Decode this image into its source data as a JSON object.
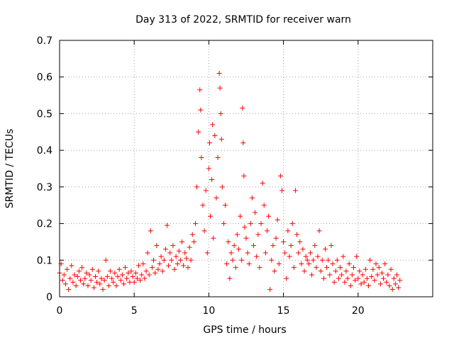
{
  "chart_data": {
    "type": "scatter",
    "title": "Day 313 of 2022, SRMTID for receiver warn",
    "xlabel": "GPS time / hours",
    "ylabel": "SRMTID / TECUs",
    "xlim": [
      0,
      25
    ],
    "ylim": [
      0,
      0.7
    ],
    "xticks": [
      0,
      5,
      10,
      15,
      20
    ],
    "xtick_labels": [
      "0",
      "5",
      "10",
      "15",
      "20"
    ],
    "yticks": [
      0,
      0.1,
      0.2,
      0.3,
      0.4,
      0.5,
      0.6,
      0.7
    ],
    "ytick_labels": [
      "0",
      "0.1",
      "0.2",
      "0.3",
      "0.4",
      "0.5",
      "0.6",
      "0.7"
    ],
    "grid": true,
    "marker": "+",
    "series": [
      {
        "name": "SRMTID",
        "color": "#ff0000",
        "points": [
          [
            0.0,
            0.065
          ],
          [
            0.1,
            0.09
          ],
          [
            0.2,
            0.045
          ],
          [
            0.3,
            0.06
          ],
          [
            0.4,
            0.035
          ],
          [
            0.5,
            0.075
          ],
          [
            0.6,
            0.02
          ],
          [
            0.7,
            0.05
          ],
          [
            0.8,
            0.085
          ],
          [
            0.9,
            0.04
          ],
          [
            1.0,
            0.06
          ],
          [
            1.1,
            0.03
          ],
          [
            1.2,
            0.055
          ],
          [
            1.3,
            0.07
          ],
          [
            1.4,
            0.045
          ],
          [
            1.5,
            0.08
          ],
          [
            1.6,
            0.035
          ],
          [
            1.7,
            0.05
          ],
          [
            1.8,
            0.065
          ],
          [
            1.9,
            0.03
          ],
          [
            2.0,
            0.06
          ],
          [
            2.1,
            0.045
          ],
          [
            2.2,
            0.075
          ],
          [
            2.3,
            0.025
          ],
          [
            2.4,
            0.055
          ],
          [
            2.5,
            0.04
          ],
          [
            2.6,
            0.07
          ],
          [
            2.7,
            0.035
          ],
          [
            2.8,
            0.05
          ],
          [
            2.9,
            0.02
          ],
          [
            3.0,
            0.045
          ],
          [
            3.1,
            0.1
          ],
          [
            3.2,
            0.055
          ],
          [
            3.3,
            0.03
          ],
          [
            3.4,
            0.07
          ],
          [
            3.5,
            0.05
          ],
          [
            3.6,
            0.04
          ],
          [
            3.7,
            0.065
          ],
          [
            3.8,
            0.03
          ],
          [
            3.9,
            0.055
          ],
          [
            4.0,
            0.075
          ],
          [
            4.1,
            0.045
          ],
          [
            4.2,
            0.06
          ],
          [
            4.3,
            0.035
          ],
          [
            4.4,
            0.08
          ],
          [
            4.5,
            0.05
          ],
          [
            4.6,
            0.065
          ],
          [
            4.7,
            0.04
          ],
          [
            4.8,
            0.07
          ],
          [
            4.9,
            0.055
          ],
          [
            5.0,
            0.04
          ],
          [
            5.1,
            0.065
          ],
          [
            5.2,
            0.05
          ],
          [
            5.3,
            0.085
          ],
          [
            5.4,
            0.045
          ],
          [
            5.5,
            0.06
          ],
          [
            5.6,
            0.09
          ],
          [
            5.7,
            0.05
          ],
          [
            5.8,
            0.07
          ],
          [
            5.9,
            0.12
          ],
          [
            6.0,
            0.06
          ],
          [
            6.1,
            0.18
          ],
          [
            6.2,
            0.08
          ],
          [
            6.3,
            0.1
          ],
          [
            6.4,
            0.065
          ],
          [
            6.5,
            0.14
          ],
          [
            6.6,
            0.075
          ],
          [
            6.7,
            0.09
          ],
          [
            6.8,
            0.11
          ],
          [
            6.9,
            0.07
          ],
          [
            7.0,
            0.1
          ],
          [
            7.1,
            0.13
          ],
          [
            7.2,
            0.195
          ],
          [
            7.3,
            0.085
          ],
          [
            7.4,
            0.12
          ],
          [
            7.5,
            0.1
          ],
          [
            7.6,
            0.14
          ],
          [
            7.7,
            0.075
          ],
          [
            7.8,
            0.11
          ],
          [
            7.9,
            0.09
          ],
          [
            8.0,
            0.125
          ],
          [
            8.1,
            0.1
          ],
          [
            8.2,
            0.15
          ],
          [
            8.3,
            0.085
          ],
          [
            8.4,
            0.12
          ],
          [
            8.5,
            0.105
          ],
          [
            8.6,
            0.08
          ],
          [
            8.7,
            0.135
          ],
          [
            8.8,
            0.1
          ],
          [
            8.9,
            0.17
          ],
          [
            9.0,
            0.15
          ],
          [
            9.1,
            0.2
          ],
          [
            9.2,
            0.3
          ],
          [
            9.3,
            0.45
          ],
          [
            9.4,
            0.565
          ],
          [
            9.45,
            0.51
          ],
          [
            9.5,
            0.38
          ],
          [
            9.6,
            0.25
          ],
          [
            9.7,
            0.18
          ],
          [
            9.8,
            0.29
          ],
          [
            9.9,
            0.12
          ],
          [
            10.0,
            0.35
          ],
          [
            10.05,
            0.42
          ],
          [
            10.1,
            0.22
          ],
          [
            10.2,
            0.32
          ],
          [
            10.25,
            0.47
          ],
          [
            10.3,
            0.16
          ],
          [
            10.4,
            0.44
          ],
          [
            10.5,
            0.27
          ],
          [
            10.6,
            0.38
          ],
          [
            10.7,
            0.61
          ],
          [
            10.75,
            0.57
          ],
          [
            10.8,
            0.5
          ],
          [
            10.85,
            0.43
          ],
          [
            10.9,
            0.3
          ],
          [
            11.0,
            0.2
          ],
          [
            11.1,
            0.25
          ],
          [
            11.2,
            0.09
          ],
          [
            11.3,
            0.15
          ],
          [
            11.4,
            0.05
          ],
          [
            11.5,
            0.12
          ],
          [
            11.6,
            0.1
          ],
          [
            11.7,
            0.14
          ],
          [
            11.8,
            0.08
          ],
          [
            11.9,
            0.17
          ],
          [
            12.0,
            0.13
          ],
          [
            12.1,
            0.22
          ],
          [
            12.2,
            0.1
          ],
          [
            12.25,
            0.515
          ],
          [
            12.3,
            0.42
          ],
          [
            12.35,
            0.33
          ],
          [
            12.4,
            0.19
          ],
          [
            12.5,
            0.16
          ],
          [
            12.6,
            0.12
          ],
          [
            12.7,
            0.09
          ],
          [
            12.8,
            0.2
          ],
          [
            12.9,
            0.27
          ],
          [
            13.0,
            0.14
          ],
          [
            13.1,
            0.23
          ],
          [
            13.2,
            0.11
          ],
          [
            13.3,
            0.17
          ],
          [
            13.4,
            0.08
          ],
          [
            13.5,
            0.2
          ],
          [
            13.6,
            0.31
          ],
          [
            13.7,
            0.25
          ],
          [
            13.8,
            0.12
          ],
          [
            13.9,
            0.18
          ],
          [
            14.0,
            0.22
          ],
          [
            14.1,
            0.02
          ],
          [
            14.2,
            0.1
          ],
          [
            14.3,
            0.14
          ],
          [
            14.4,
            0.07
          ],
          [
            14.5,
            0.16
          ],
          [
            14.6,
            0.21
          ],
          [
            14.7,
            0.09
          ],
          [
            14.8,
            0.33
          ],
          [
            14.9,
            0.29
          ],
          [
            15.0,
            0.15
          ],
          [
            15.1,
            0.12
          ],
          [
            15.2,
            0.05
          ],
          [
            15.3,
            0.18
          ],
          [
            15.4,
            0.11
          ],
          [
            15.5,
            0.14
          ],
          [
            15.6,
            0.2
          ],
          [
            15.7,
            0.08
          ],
          [
            15.8,
            0.29
          ],
          [
            15.9,
            0.17
          ],
          [
            16.0,
            0.12
          ],
          [
            16.1,
            0.15
          ],
          [
            16.2,
            0.09
          ],
          [
            16.3,
            0.13
          ],
          [
            16.4,
            0.07
          ],
          [
            16.5,
            0.11
          ],
          [
            16.6,
            0.1
          ],
          [
            16.7,
            0.09
          ],
          [
            16.8,
            0.12
          ],
          [
            16.9,
            0.06
          ],
          [
            17.0,
            0.1
          ],
          [
            17.1,
            0.14
          ],
          [
            17.2,
            0.08
          ],
          [
            17.3,
            0.11
          ],
          [
            17.4,
            0.18
          ],
          [
            17.5,
            0.07
          ],
          [
            17.6,
            0.1
          ],
          [
            17.7,
            0.05
          ],
          [
            17.8,
            0.13
          ],
          [
            17.9,
            0.08
          ],
          [
            18.0,
            0.1
          ],
          [
            18.1,
            0.06
          ],
          [
            18.2,
            0.14
          ],
          [
            18.3,
            0.09
          ],
          [
            18.4,
            0.04
          ],
          [
            18.5,
            0.07
          ],
          [
            18.6,
            0.1
          ],
          [
            18.7,
            0.05
          ],
          [
            18.8,
            0.08
          ],
          [
            18.9,
            0.06
          ],
          [
            19.0,
            0.11
          ],
          [
            19.1,
            0.04
          ],
          [
            19.2,
            0.07
          ],
          [
            19.3,
            0.05
          ],
          [
            19.4,
            0.09
          ],
          [
            19.5,
            0.03
          ],
          [
            19.6,
            0.06
          ],
          [
            19.7,
            0.08
          ],
          [
            19.8,
            0.045
          ],
          [
            19.9,
            0.11
          ],
          [
            20.0,
            0.05
          ],
          [
            20.1,
            0.07
          ],
          [
            20.2,
            0.035
          ],
          [
            20.3,
            0.06
          ],
          [
            20.4,
            0.04
          ],
          [
            20.5,
            0.075
          ],
          [
            20.6,
            0.05
          ],
          [
            20.7,
            0.03
          ],
          [
            20.8,
            0.1
          ],
          [
            20.9,
            0.055
          ],
          [
            21.0,
            0.075
          ],
          [
            21.1,
            0.045
          ],
          [
            21.2,
            0.09
          ],
          [
            21.3,
            0.06
          ],
          [
            21.4,
            0.08
          ],
          [
            21.5,
            0.035
          ],
          [
            21.6,
            0.065
          ],
          [
            21.7,
            0.05
          ],
          [
            21.8,
            0.09
          ],
          [
            21.9,
            0.04
          ],
          [
            22.0,
            0.06
          ],
          [
            22.1,
            0.03
          ],
          [
            22.2,
            0.075
          ],
          [
            22.3,
            0.02
          ],
          [
            22.4,
            0.05
          ],
          [
            22.5,
            0.035
          ],
          [
            22.6,
            0.06
          ],
          [
            22.7,
            0.025
          ],
          [
            22.8,
            0.045
          ]
        ]
      }
    ]
  }
}
